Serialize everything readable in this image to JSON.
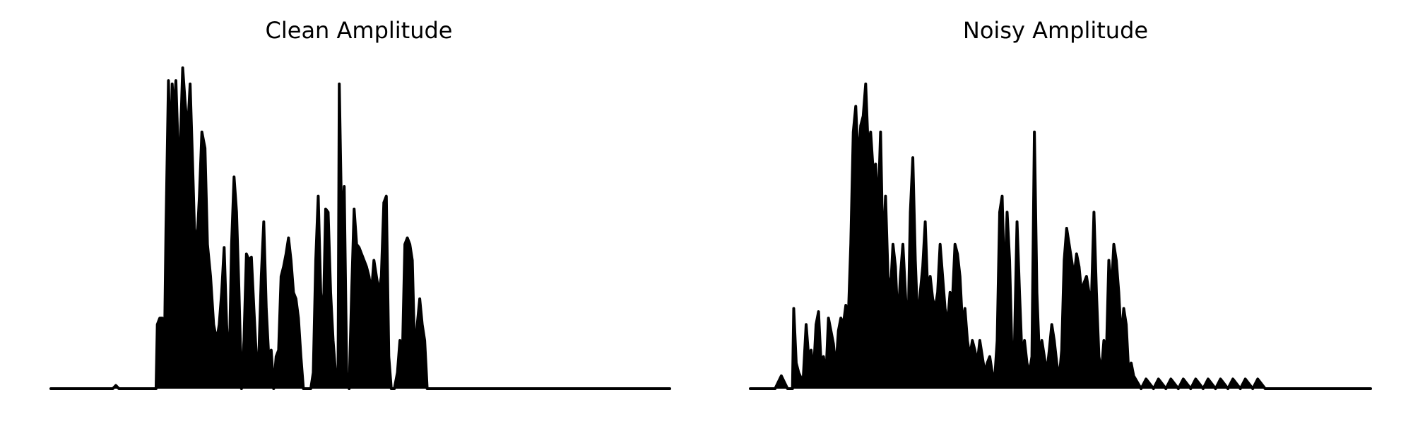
{
  "figure": {
    "background": "#ffffff",
    "line_color": "#000000"
  },
  "chart_data": [
    {
      "type": "area",
      "title": "Clean Amplitude",
      "xlabel": "",
      "ylabel": "",
      "axes_visible": false,
      "grid": false,
      "ylim": [
        0,
        1
      ],
      "series": [
        {
          "color": "#000000",
          "points": [
            [
              0.0,
              0.0
            ],
            [
              0.1,
              0.0
            ],
            [
              0.105,
              0.01
            ],
            [
              0.11,
              0.0
            ],
            [
              0.17,
              0.0
            ],
            [
              0.172,
              0.2
            ],
            [
              0.176,
              0.22
            ],
            [
              0.18,
              0.22
            ],
            [
              0.184,
              0.19
            ],
            [
              0.186,
              0.5
            ],
            [
              0.19,
              0.96
            ],
            [
              0.193,
              0.7
            ],
            [
              0.196,
              0.95
            ],
            [
              0.199,
              0.85
            ],
            [
              0.202,
              0.96
            ],
            [
              0.205,
              0.78
            ],
            [
              0.209,
              0.75
            ],
            [
              0.213,
              1.0
            ],
            [
              0.217,
              0.89
            ],
            [
              0.221,
              0.8
            ],
            [
              0.225,
              0.95
            ],
            [
              0.229,
              0.7
            ],
            [
              0.232,
              0.5
            ],
            [
              0.236,
              0.45
            ],
            [
              0.24,
              0.6
            ],
            [
              0.244,
              0.8
            ],
            [
              0.249,
              0.75
            ],
            [
              0.253,
              0.45
            ],
            [
              0.258,
              0.35
            ],
            [
              0.263,
              0.2
            ],
            [
              0.268,
              0.15
            ],
            [
              0.272,
              0.2
            ],
            [
              0.276,
              0.3
            ],
            [
              0.28,
              0.44
            ],
            [
              0.284,
              0.2
            ],
            [
              0.288,
              0.05
            ],
            [
              0.292,
              0.45
            ],
            [
              0.296,
              0.66
            ],
            [
              0.3,
              0.55
            ],
            [
              0.304,
              0.3
            ],
            [
              0.308,
              0.0
            ],
            [
              0.312,
              0.15
            ],
            [
              0.316,
              0.42
            ],
            [
              0.32,
              0.4
            ],
            [
              0.324,
              0.41
            ],
            [
              0.328,
              0.25
            ],
            [
              0.332,
              0.1
            ],
            [
              0.336,
              0.1
            ],
            [
              0.34,
              0.35
            ],
            [
              0.344,
              0.52
            ],
            [
              0.348,
              0.25
            ],
            [
              0.352,
              0.1
            ],
            [
              0.356,
              0.12
            ],
            [
              0.36,
              0.0
            ],
            [
              0.364,
              0.1
            ],
            [
              0.368,
              0.12
            ],
            [
              0.372,
              0.35
            ],
            [
              0.376,
              0.38
            ],
            [
              0.38,
              0.42
            ],
            [
              0.384,
              0.47
            ],
            [
              0.388,
              0.4
            ],
            [
              0.392,
              0.3
            ],
            [
              0.396,
              0.28
            ],
            [
              0.4,
              0.22
            ],
            [
              0.404,
              0.1
            ],
            [
              0.408,
              0.0
            ],
            [
              0.42,
              0.0
            ],
            [
              0.424,
              0.05
            ],
            [
              0.428,
              0.4
            ],
            [
              0.432,
              0.6
            ],
            [
              0.436,
              0.3
            ],
            [
              0.44,
              0.2
            ],
            [
              0.444,
              0.56
            ],
            [
              0.448,
              0.55
            ],
            [
              0.452,
              0.3
            ],
            [
              0.456,
              0.15
            ],
            [
              0.46,
              0.05
            ],
            [
              0.464,
              0.02
            ],
            [
              0.466,
              0.95
            ],
            [
              0.47,
              0.5
            ],
            [
              0.474,
              0.63
            ],
            [
              0.478,
              0.05
            ],
            [
              0.482,
              0.0
            ],
            [
              0.486,
              0.3
            ],
            [
              0.49,
              0.56
            ],
            [
              0.494,
              0.45
            ],
            [
              0.498,
              0.44
            ],
            [
              0.502,
              0.42
            ],
            [
              0.506,
              0.4
            ],
            [
              0.51,
              0.38
            ],
            [
              0.514,
              0.35
            ],
            [
              0.518,
              0.3
            ],
            [
              0.522,
              0.4
            ],
            [
              0.526,
              0.35
            ],
            [
              0.53,
              0.3
            ],
            [
              0.534,
              0.35
            ],
            [
              0.538,
              0.58
            ],
            [
              0.542,
              0.6
            ],
            [
              0.546,
              0.1
            ],
            [
              0.55,
              0.0
            ],
            [
              0.555,
              0.0
            ],
            [
              0.56,
              0.05
            ],
            [
              0.564,
              0.15
            ],
            [
              0.568,
              0.1
            ],
            [
              0.572,
              0.45
            ],
            [
              0.576,
              0.47
            ],
            [
              0.58,
              0.45
            ],
            [
              0.584,
              0.4
            ],
            [
              0.588,
              0.1
            ],
            [
              0.592,
              0.2
            ],
            [
              0.596,
              0.28
            ],
            [
              0.6,
              0.2
            ],
            [
              0.604,
              0.15
            ],
            [
              0.608,
              0.0
            ],
            [
              1.0,
              0.0
            ]
          ]
        }
      ]
    },
    {
      "type": "area",
      "title": "Noisy Amplitude",
      "xlabel": "",
      "ylabel": "",
      "axes_visible": false,
      "grid": false,
      "ylim": [
        0,
        1
      ],
      "series": [
        {
          "color": "#000000",
          "points": [
            [
              0.0,
              0.0
            ],
            [
              0.04,
              0.0
            ],
            [
              0.05,
              0.04
            ],
            [
              0.06,
              0.0
            ],
            [
              0.068,
              0.0
            ],
            [
              0.07,
              0.25
            ],
            [
              0.074,
              0.08
            ],
            [
              0.078,
              0.05
            ],
            [
              0.085,
              0.02
            ],
            [
              0.09,
              0.2
            ],
            [
              0.094,
              0.1
            ],
            [
              0.098,
              0.12
            ],
            [
              0.102,
              0.05
            ],
            [
              0.106,
              0.2
            ],
            [
              0.11,
              0.24
            ],
            [
              0.114,
              0.08
            ],
            [
              0.118,
              0.1
            ],
            [
              0.122,
              0.04
            ],
            [
              0.126,
              0.22
            ],
            [
              0.13,
              0.18
            ],
            [
              0.134,
              0.14
            ],
            [
              0.138,
              0.06
            ],
            [
              0.142,
              0.18
            ],
            [
              0.146,
              0.22
            ],
            [
              0.15,
              0.2
            ],
            [
              0.154,
              0.26
            ],
            [
              0.158,
              0.22
            ],
            [
              0.162,
              0.45
            ],
            [
              0.166,
              0.8
            ],
            [
              0.17,
              0.88
            ],
            [
              0.174,
              0.7
            ],
            [
              0.178,
              0.82
            ],
            [
              0.182,
              0.85
            ],
            [
              0.186,
              0.95
            ],
            [
              0.19,
              0.75
            ],
            [
              0.194,
              0.8
            ],
            [
              0.198,
              0.68
            ],
            [
              0.202,
              0.7
            ],
            [
              0.206,
              0.55
            ],
            [
              0.21,
              0.8
            ],
            [
              0.214,
              0.4
            ],
            [
              0.218,
              0.6
            ],
            [
              0.222,
              0.35
            ],
            [
              0.226,
              0.3
            ],
            [
              0.23,
              0.45
            ],
            [
              0.234,
              0.38
            ],
            [
              0.238,
              0.2
            ],
            [
              0.242,
              0.35
            ],
            [
              0.246,
              0.45
            ],
            [
              0.25,
              0.3
            ],
            [
              0.254,
              0.15
            ],
            [
              0.258,
              0.55
            ],
            [
              0.262,
              0.72
            ],
            [
              0.266,
              0.4
            ],
            [
              0.27,
              0.2
            ],
            [
              0.274,
              0.3
            ],
            [
              0.278,
              0.38
            ],
            [
              0.282,
              0.52
            ],
            [
              0.286,
              0.3
            ],
            [
              0.29,
              0.35
            ],
            [
              0.294,
              0.28
            ],
            [
              0.298,
              0.25
            ],
            [
              0.302,
              0.3
            ],
            [
              0.306,
              0.45
            ],
            [
              0.31,
              0.35
            ],
            [
              0.314,
              0.25
            ],
            [
              0.318,
              0.2
            ],
            [
              0.322,
              0.3
            ],
            [
              0.326,
              0.28
            ],
            [
              0.33,
              0.45
            ],
            [
              0.334,
              0.42
            ],
            [
              0.338,
              0.35
            ],
            [
              0.342,
              0.2
            ],
            [
              0.346,
              0.25
            ],
            [
              0.35,
              0.15
            ],
            [
              0.354,
              0.1
            ],
            [
              0.358,
              0.15
            ],
            [
              0.362,
              0.12
            ],
            [
              0.366,
              0.08
            ],
            [
              0.37,
              0.15
            ],
            [
              0.374,
              0.1
            ],
            [
              0.378,
              0.05
            ],
            [
              0.382,
              0.08
            ],
            [
              0.386,
              0.1
            ],
            [
              0.39,
              0.05
            ],
            [
              0.394,
              0.03
            ],
            [
              0.398,
              0.15
            ],
            [
              0.402,
              0.55
            ],
            [
              0.406,
              0.6
            ],
            [
              0.41,
              0.3
            ],
            [
              0.414,
              0.55
            ],
            [
              0.418,
              0.4
            ],
            [
              0.422,
              0.1
            ],
            [
              0.426,
              0.15
            ],
            [
              0.43,
              0.52
            ],
            [
              0.434,
              0.3
            ],
            [
              0.438,
              0.1
            ],
            [
              0.442,
              0.15
            ],
            [
              0.446,
              0.08
            ],
            [
              0.45,
              0.05
            ],
            [
              0.454,
              0.1
            ],
            [
              0.458,
              0.8
            ],
            [
              0.462,
              0.3
            ],
            [
              0.466,
              0.1
            ],
            [
              0.47,
              0.15
            ],
            [
              0.474,
              0.1
            ],
            [
              0.478,
              0.05
            ],
            [
              0.482,
              0.12
            ],
            [
              0.486,
              0.2
            ],
            [
              0.49,
              0.15
            ],
            [
              0.494,
              0.08
            ],
            [
              0.498,
              0.03
            ],
            [
              0.502,
              0.12
            ],
            [
              0.506,
              0.4
            ],
            [
              0.51,
              0.5
            ],
            [
              0.514,
              0.45
            ],
            [
              0.518,
              0.4
            ],
            [
              0.522,
              0.35
            ],
            [
              0.526,
              0.42
            ],
            [
              0.53,
              0.38
            ],
            [
              0.534,
              0.3
            ],
            [
              0.538,
              0.33
            ],
            [
              0.542,
              0.35
            ],
            [
              0.546,
              0.3
            ],
            [
              0.55,
              0.28
            ],
            [
              0.554,
              0.55
            ],
            [
              0.558,
              0.3
            ],
            [
              0.562,
              0.1
            ],
            [
              0.566,
              0.05
            ],
            [
              0.57,
              0.15
            ],
            [
              0.574,
              0.1
            ],
            [
              0.578,
              0.4
            ],
            [
              0.582,
              0.3
            ],
            [
              0.586,
              0.45
            ],
            [
              0.59,
              0.4
            ],
            [
              0.594,
              0.3
            ],
            [
              0.598,
              0.15
            ],
            [
              0.602,
              0.25
            ],
            [
              0.606,
              0.2
            ],
            [
              0.61,
              0.05
            ],
            [
              0.614,
              0.08
            ],
            [
              0.618,
              0.04
            ],
            [
              0.63,
              0.0
            ],
            [
              0.638,
              0.03
            ],
            [
              0.65,
              0.0
            ],
            [
              0.658,
              0.03
            ],
            [
              0.67,
              0.0
            ],
            [
              0.678,
              0.03
            ],
            [
              0.69,
              0.0
            ],
            [
              0.698,
              0.03
            ],
            [
              0.71,
              0.0
            ],
            [
              0.718,
              0.03
            ],
            [
              0.73,
              0.0
            ],
            [
              0.738,
              0.03
            ],
            [
              0.75,
              0.0
            ],
            [
              0.758,
              0.03
            ],
            [
              0.77,
              0.0
            ],
            [
              0.778,
              0.03
            ],
            [
              0.79,
              0.0
            ],
            [
              0.798,
              0.03
            ],
            [
              0.81,
              0.0
            ],
            [
              0.818,
              0.03
            ],
            [
              0.83,
              0.0
            ],
            [
              1.0,
              0.0
            ]
          ]
        }
      ]
    }
  ]
}
